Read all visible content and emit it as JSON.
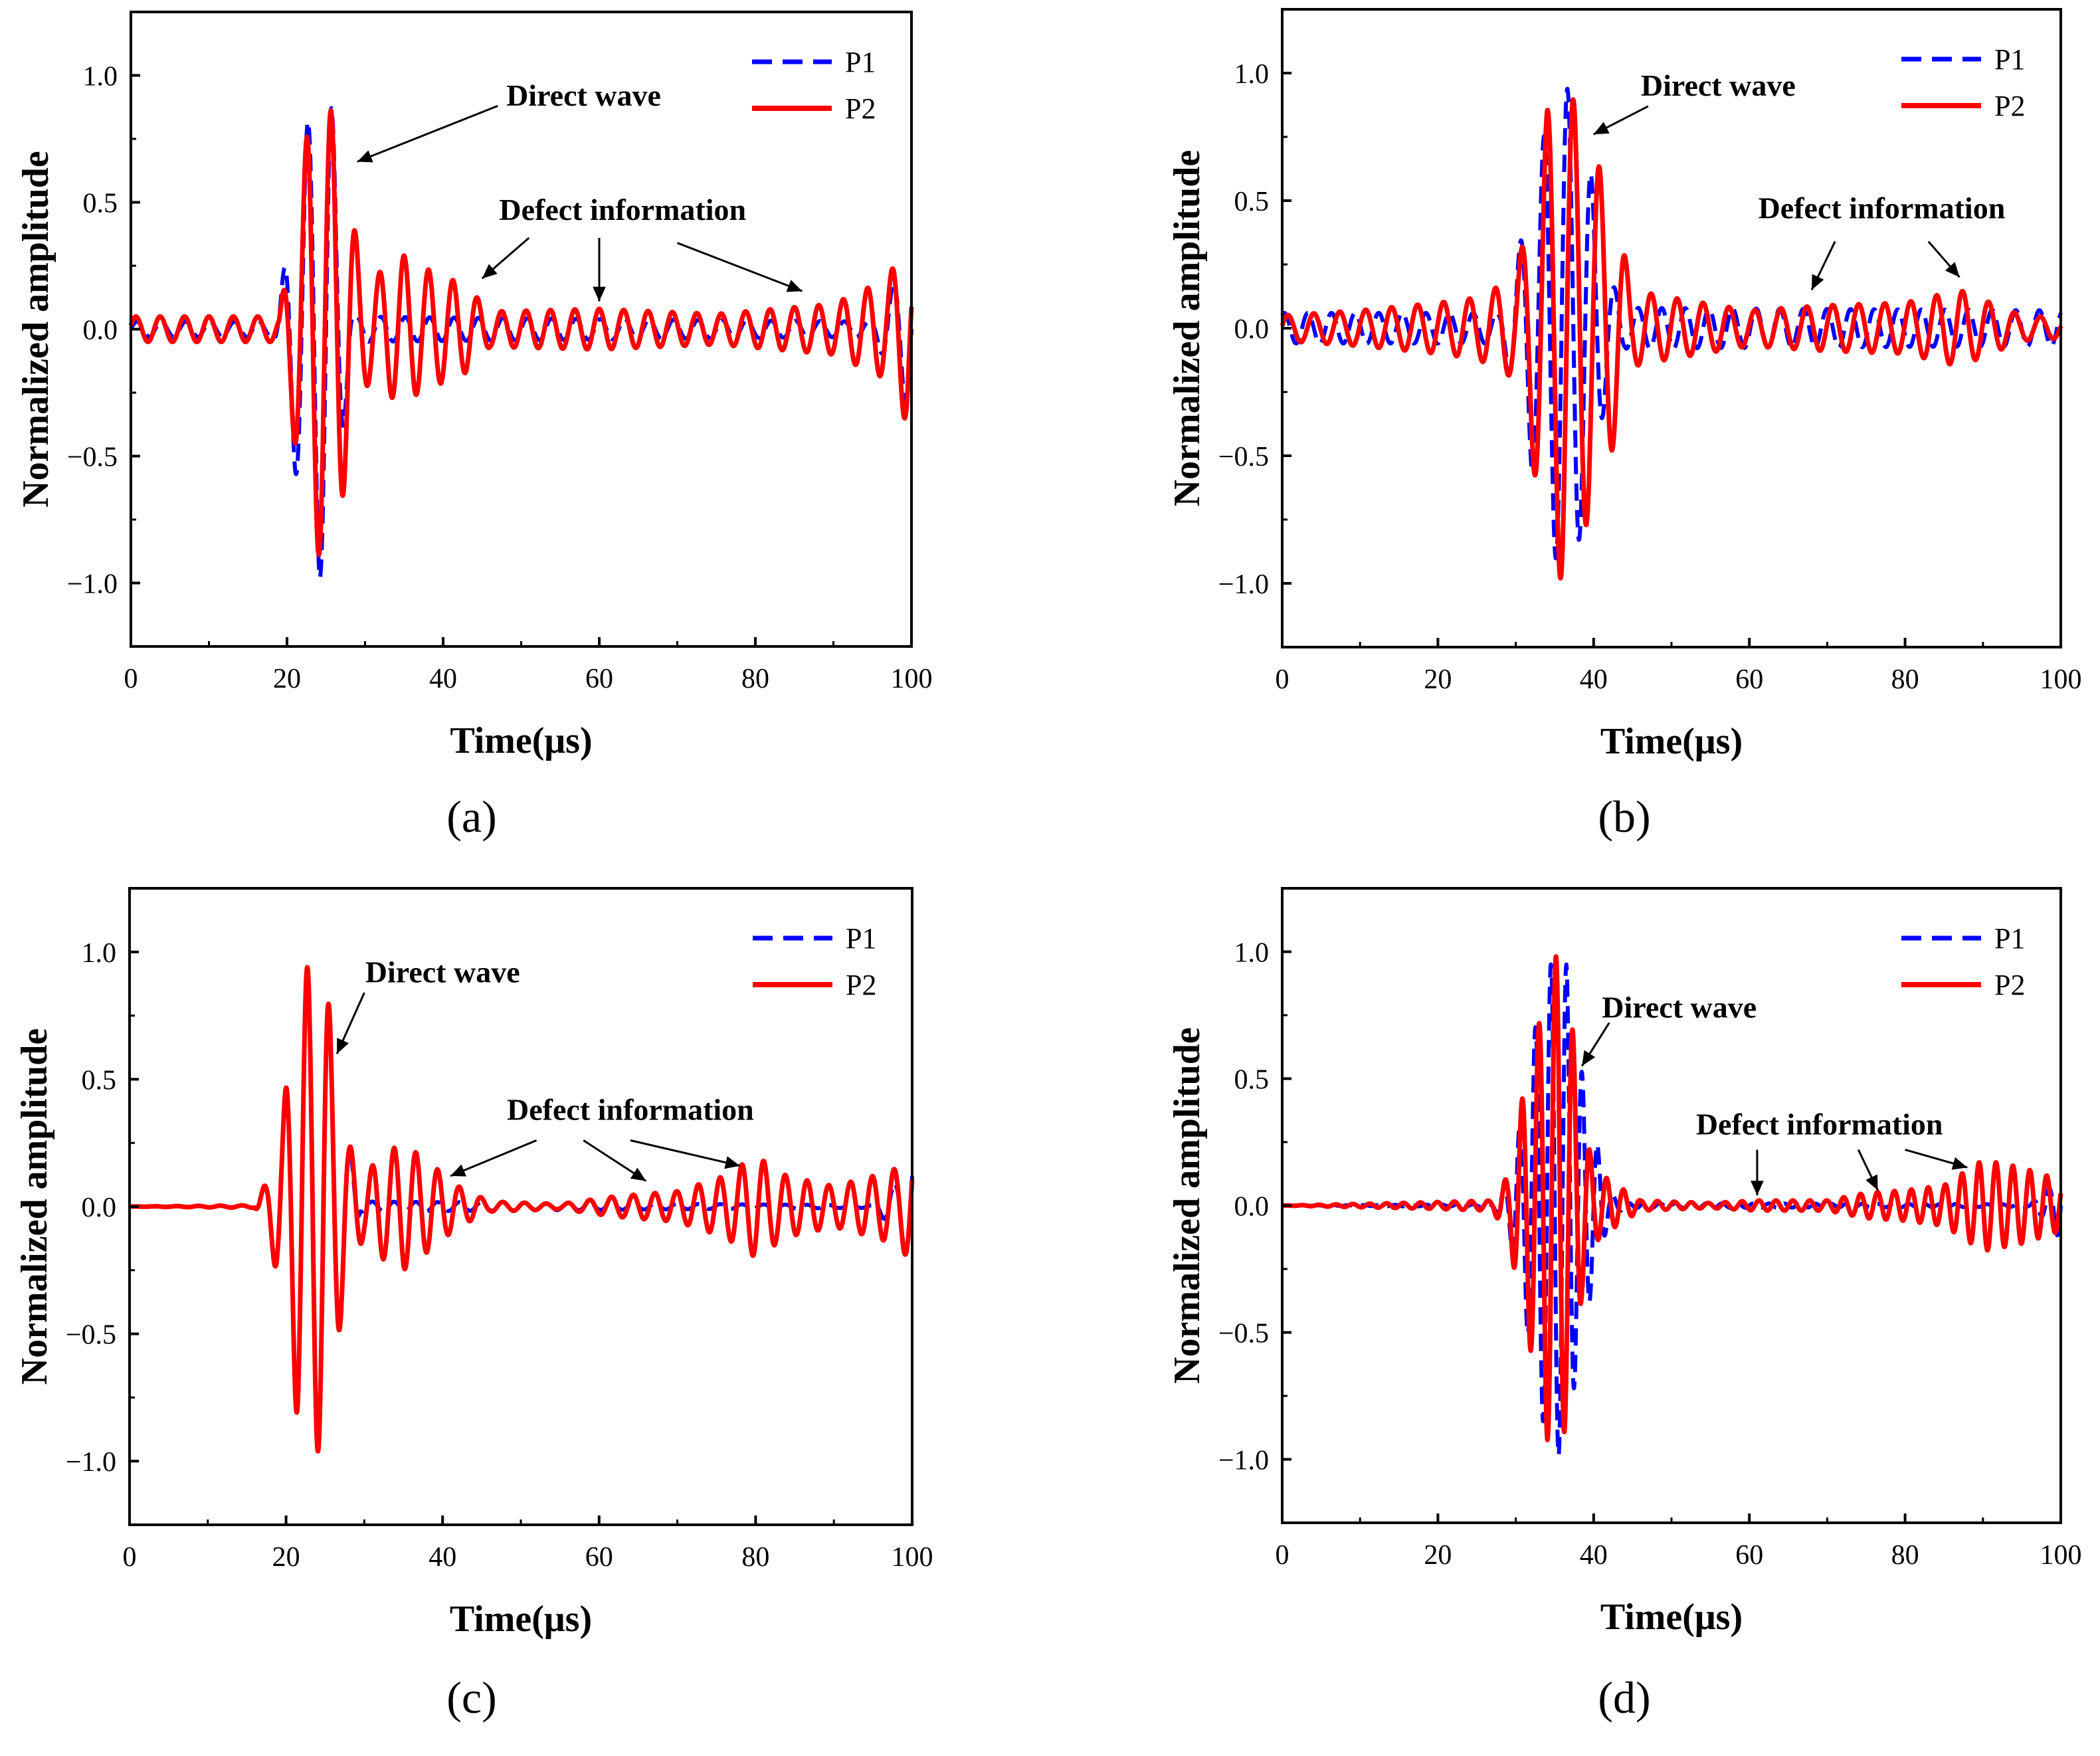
{
  "figure": {
    "panel_captions": [
      "(a)",
      "(b)",
      "(c)",
      "(d)"
    ]
  },
  "colors": {
    "P1": "#0000ff",
    "P2": "#ff0000",
    "axis": "#000000"
  },
  "chart_data": [
    {
      "id": "a",
      "type": "line",
      "caption": "(a)",
      "xlabel": "Time(μs)",
      "ylabel": "Normalized amplitude",
      "xlim": [
        0,
        100
      ],
      "ylim": [
        -1.25,
        1.25
      ],
      "xticks": [
        0,
        20,
        40,
        60,
        80,
        100
      ],
      "yticks": [
        -1.0,
        -0.5,
        0.0,
        0.5,
        1.0
      ],
      "ytick_labels": [
        "−1.0",
        "−0.5",
        "0.0",
        "0.5",
        "1.0"
      ],
      "legend": [
        "P1",
        "P2"
      ],
      "annotations": [
        {
          "text": "Direct wave",
          "x": 58,
          "y": 0.92,
          "arrows": [
            [
              47,
              0.88,
              29,
              0.66
            ]
          ]
        },
        {
          "text": "Defect information",
          "x": 63,
          "y": 0.47,
          "arrows": [
            [
              51,
              0.36,
              45,
              0.2
            ],
            [
              60,
              0.36,
              60,
              0.11
            ],
            [
              70,
              0.34,
              86,
              0.15
            ]
          ]
        }
      ],
      "series": [
        {
          "name": "P1",
          "dash": true,
          "segments": [
            {
              "t0": 0,
              "t1": 100,
              "f": 0.32,
              "ph": 0.0,
              "env": [
                [
                  0,
                  0.03
                ],
                [
                  18,
                  0.03
                ],
                [
                  19,
                  0.1
                ],
                [
                  21,
                  0.55
                ],
                [
                  22.5,
                  0.8
                ],
                [
                  24.2,
                  0.98
                ],
                [
                  25.5,
                  0.95
                ],
                [
                  27,
                  0.45
                ],
                [
                  28.5,
                  0.05
                ],
                [
                  95,
                  0.03
                ],
                [
                  98,
                  0.2
                ],
                [
                  100,
                  0.35
                ]
              ]
            }
          ]
        },
        {
          "name": "P2",
          "dash": false,
          "segments": [
            {
              "t0": 0,
              "t1": 100,
              "f": 0.32,
              "ph": 0.3,
              "env": [
                [
                  0,
                  0.05
                ],
                [
                  19,
                  0.05
                ],
                [
                  21,
                  0.45
                ],
                [
                  23,
                  0.85
                ],
                [
                  24.4,
                  0.9
                ],
                [
                  26,
                  0.85
                ],
                [
                  27.5,
                  0.6
                ],
                [
                  29.5,
                  0.25
                ],
                [
                  31,
                  0.2
                ],
                [
                  34.5,
                  0.3
                ],
                [
                  37,
                  0.25
                ],
                [
                  43,
                  0.17
                ],
                [
                  46,
                  0.07
                ],
                [
                  60,
                  0.08
                ],
                [
                  75,
                  0.06
                ],
                [
                  90,
                  0.1
                ],
                [
                  97,
                  0.2
                ],
                [
                  99.5,
                  0.38
                ],
                [
                  100,
                  0.3
                ]
              ]
            }
          ]
        }
      ]
    },
    {
      "id": "b",
      "type": "line",
      "caption": "(b)",
      "xlabel": "Time(μs)",
      "ylabel": "Normalized amplitude",
      "xlim": [
        0,
        100
      ],
      "ylim": [
        -1.25,
        1.25
      ],
      "xticks": [
        0,
        20,
        40,
        60,
        80,
        100
      ],
      "yticks": [
        -1.0,
        -0.5,
        0.0,
        0.5,
        1.0
      ],
      "ytick_labels": [
        "−1.0",
        "−0.5",
        "0.0",
        "0.5",
        "1.0"
      ],
      "legend": [
        "P1",
        "P2"
      ],
      "annotations": [
        {
          "text": "Direct wave",
          "x": 56,
          "y": 0.95,
          "arrows": [
            [
              47,
              0.87,
              40,
              0.76
            ]
          ]
        },
        {
          "text": "Defect information",
          "x": 77,
          "y": 0.47,
          "arrows": [
            [
              71,
              0.34,
              68,
              0.15
            ],
            [
              83,
              0.34,
              87,
              0.2
            ]
          ]
        }
      ],
      "series": [
        {
          "name": "P1",
          "dash": true,
          "segments": [
            {
              "t0": 0,
              "t1": 100,
              "f": 0.33,
              "ph": 1.0,
              "env": [
                [
                  0,
                  0.06
                ],
                [
                  28,
                  0.06
                ],
                [
                  30,
                  0.25
                ],
                [
                  32,
                  0.55
                ],
                [
                  34,
                  0.8
                ],
                [
                  36,
                  0.98
                ],
                [
                  38,
                  0.85
                ],
                [
                  40,
                  0.55
                ],
                [
                  42,
                  0.2
                ],
                [
                  44,
                  0.08
                ],
                [
                  100,
                  0.07
                ]
              ]
            }
          ]
        },
        {
          "name": "P2",
          "dash": false,
          "segments": [
            {
              "t0": 0,
              "t1": 100,
              "f": 0.3,
              "ph": 0.2,
              "env": [
                [
                  0,
                  0.05
                ],
                [
                  10,
                  0.07
                ],
                [
                  20,
                  0.1
                ],
                [
                  25,
                  0.12
                ],
                [
                  30,
                  0.2
                ],
                [
                  32,
                  0.5
                ],
                [
                  34,
                  0.85
                ],
                [
                  36,
                  1.0
                ],
                [
                  38,
                  0.85
                ],
                [
                  40,
                  0.7
                ],
                [
                  43,
                  0.42
                ],
                [
                  45,
                  0.15
                ],
                [
                  50,
                  0.12
                ],
                [
                  60,
                  0.07
                ],
                [
                  70,
                  0.09
                ],
                [
                  80,
                  0.1
                ],
                [
                  87,
                  0.15
                ],
                [
                  95,
                  0.05
                ],
                [
                  100,
                  0.04
                ]
              ]
            }
          ]
        }
      ]
    },
    {
      "id": "c",
      "type": "line",
      "caption": "(c)",
      "xlabel": "Time(μs)",
      "ylabel": "Normalized amplitude",
      "xlim": [
        0,
        100
      ],
      "ylim": [
        -1.25,
        1.25
      ],
      "xticks": [
        0,
        20,
        40,
        60,
        80,
        100
      ],
      "yticks": [
        -1.0,
        -0.5,
        0.0,
        0.5,
        1.0
      ],
      "ytick_labels": [
        "−1.0",
        "−0.5",
        "0.0",
        "0.5",
        "1.0"
      ],
      "legend": [
        "P1",
        "P2"
      ],
      "annotations": [
        {
          "text": "Direct wave",
          "x": 40,
          "y": 0.92,
          "arrows": [
            [
              30,
              0.84,
              26.5,
              0.6
            ]
          ]
        },
        {
          "text": "Defect information",
          "x": 64,
          "y": 0.38,
          "arrows": [
            [
              52,
              0.26,
              41,
              0.12
            ],
            [
              58,
              0.26,
              66,
              0.1
            ],
            [
              64,
              0.26,
              78,
              0.16
            ]
          ]
        }
      ],
      "series": [
        {
          "name": "P1",
          "dash": true,
          "segments": [
            {
              "t0": 0,
              "t1": 100,
              "f": 0.36,
              "ph": 0.5,
              "env": [
                [
                  0,
                  0.0
                ],
                [
                  16,
                  0.005
                ],
                [
                  17.5,
                  0.1
                ],
                [
                  19.5,
                  0.35
                ],
                [
                  21.5,
                  0.85
                ],
                [
                  23.5,
                  1.0
                ],
                [
                  25,
                  0.9
                ],
                [
                  26.5,
                  0.55
                ],
                [
                  28,
                  0.25
                ],
                [
                  29.5,
                  0.02
                ],
                [
                  95,
                  0.005
                ],
                [
                  98,
                  0.1
                ],
                [
                  100,
                  0.25
                ]
              ]
            }
          ]
        },
        {
          "name": "P2",
          "dash": false,
          "segments": [
            {
              "t0": 0,
              "t1": 100,
              "f": 0.36,
              "ph": 0.5,
              "env": [
                [
                  0,
                  0.0
                ],
                [
                  16,
                  0.005
                ],
                [
                  17.5,
                  0.1
                ],
                [
                  19.5,
                  0.35
                ],
                [
                  21.5,
                  0.85
                ],
                [
                  23.5,
                  1.0
                ],
                [
                  25,
                  0.9
                ],
                [
                  26.5,
                  0.55
                ],
                [
                  28,
                  0.25
                ],
                [
                  30,
                  0.12
                ],
                [
                  32,
                  0.2
                ],
                [
                  35,
                  0.25
                ],
                [
                  38,
                  0.18
                ],
                [
                  42,
                  0.08
                ],
                [
                  46,
                  0.02
                ],
                [
                  55,
                  0.01
                ],
                [
                  62,
                  0.04
                ],
                [
                  70,
                  0.06
                ],
                [
                  76,
                  0.12
                ],
                [
                  80,
                  0.2
                ],
                [
                  84,
                  0.12
                ],
                [
                  90,
                  0.08
                ],
                [
                  95,
                  0.12
                ],
                [
                  98,
                  0.15
                ],
                [
                  100,
                  0.22
                ]
              ]
            }
          ]
        }
      ]
    },
    {
      "id": "d",
      "type": "line",
      "caption": "(d)",
      "xlabel": "Time(μs)",
      "ylabel": "Normalized amplitude",
      "xlim": [
        0,
        100
      ],
      "ylim": [
        -1.25,
        1.25
      ],
      "xticks": [
        0,
        20,
        40,
        60,
        80,
        100
      ],
      "yticks": [
        -1.0,
        -0.5,
        0.0,
        0.5,
        1.0
      ],
      "ytick_labels": [
        "−1.0",
        "−0.5",
        "0.0",
        "0.5",
        "1.0"
      ],
      "legend": [
        "P1",
        "P2"
      ],
      "annotations": [
        {
          "text": "Direct wave",
          "x": 51,
          "y": 0.78,
          "arrows": [
            [
              42,
              0.72,
              38.5,
              0.55
            ]
          ]
        },
        {
          "text": "Defect information",
          "x": 69,
          "y": 0.32,
          "arrows": [
            [
              61,
              0.22,
              61,
              0.04
            ],
            [
              74,
              0.22,
              76.5,
              0.06
            ],
            [
              80,
              0.22,
              88,
              0.15
            ]
          ]
        }
      ],
      "series": [
        {
          "name": "P1",
          "dash": true,
          "segments": [
            {
              "t0": 0,
              "t1": 100,
              "f": 0.5,
              "ph": 0.0,
              "env": [
                [
                  0,
                  0.0
                ],
                [
                  27,
                  0.005
                ],
                [
                  29,
                  0.1
                ],
                [
                  31,
                  0.4
                ],
                [
                  33,
                  0.8
                ],
                [
                  35,
                  1.0
                ],
                [
                  36.5,
                  0.95
                ],
                [
                  38,
                  0.6
                ],
                [
                  40,
                  0.3
                ],
                [
                  42,
                  0.05
                ],
                [
                  44,
                  0.01
                ],
                [
                  96,
                  0.005
                ],
                [
                  99,
                  0.08
                ],
                [
                  100,
                  0.15
                ]
              ]
            }
          ]
        },
        {
          "name": "P2",
          "dash": false,
          "segments": [
            {
              "t0": 0,
              "t1": 100,
              "f": 0.46,
              "ph": 0.5,
              "env": [
                [
                  0,
                  0.0
                ],
                [
                  15,
                  0.01
                ],
                [
                  27,
                  0.02
                ],
                [
                  29,
                  0.12
                ],
                [
                  31,
                  0.45
                ],
                [
                  33,
                  0.72
                ],
                [
                  34,
                  0.92
                ],
                [
                  35.5,
                  1.0
                ],
                [
                  37,
                  0.78
                ],
                [
                  38.5,
                  0.35
                ],
                [
                  40,
                  0.15
                ],
                [
                  42,
                  0.1
                ],
                [
                  44,
                  0.06
                ],
                [
                  46,
                  0.02
                ],
                [
                  55,
                  0.01
                ],
                [
                  61,
                  0.02
                ],
                [
                  70,
                  0.02
                ],
                [
                  75,
                  0.05
                ],
                [
                  80,
                  0.06
                ],
                [
                  85,
                  0.08
                ],
                [
                  90,
                  0.18
                ],
                [
                  95,
                  0.15
                ],
                [
                  100,
                  0.1
                ]
              ]
            }
          ]
        }
      ]
    }
  ]
}
